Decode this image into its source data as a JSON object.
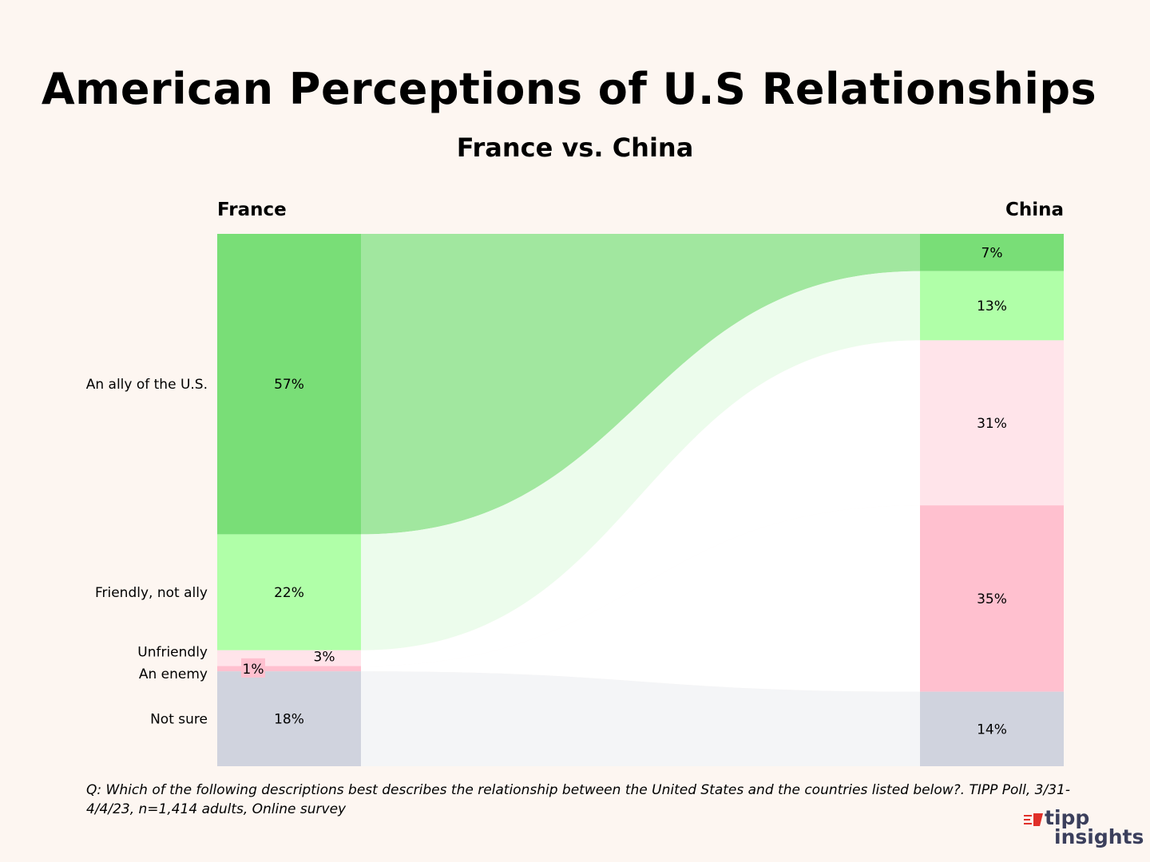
{
  "title": "American Perceptions of U.S Relationships",
  "subtitle": "France vs. China",
  "footnote": "Q:  Which of the following descriptions best describes the relationship between the United States and the countries listed below?. TIPP Poll, 3/31-4/4/23, n=1,414 adults, Online survey",
  "logo": {
    "line1": "tipp",
    "line2": "insights"
  },
  "chart_data": {
    "type": "sankey",
    "columns": [
      "France",
      "China"
    ],
    "categories": [
      "An ally of the U.S.",
      "Friendly, not ally",
      "Unfriendly",
      "An enemy",
      "Not sure"
    ],
    "series": [
      {
        "name": "France",
        "values": [
          57,
          22,
          3,
          1,
          18
        ],
        "labels": [
          "57%",
          "22%",
          "3%",
          "1%",
          "18%"
        ]
      },
      {
        "name": "China",
        "values": [
          7,
          13,
          31,
          35,
          14
        ],
        "labels": [
          "7%",
          "13%",
          "31%",
          "35%",
          "14%"
        ]
      }
    ],
    "colors": {
      "An ally of the U.S.": "#79de77",
      "Friendly, not ally": "#b0ffa8",
      "Unfriendly": "#ffe4ea",
      "An enemy": "#ffc0cf",
      "Not sure": "#d0d3de"
    },
    "flow_colors": {
      "An ally of the U.S.": "#a1e79f",
      "Friendly, not ally": "#ecfcec",
      "Unfriendly": "#ffffff",
      "An enemy": "#ffffff",
      "Not sure": "#f4f5f7"
    }
  }
}
